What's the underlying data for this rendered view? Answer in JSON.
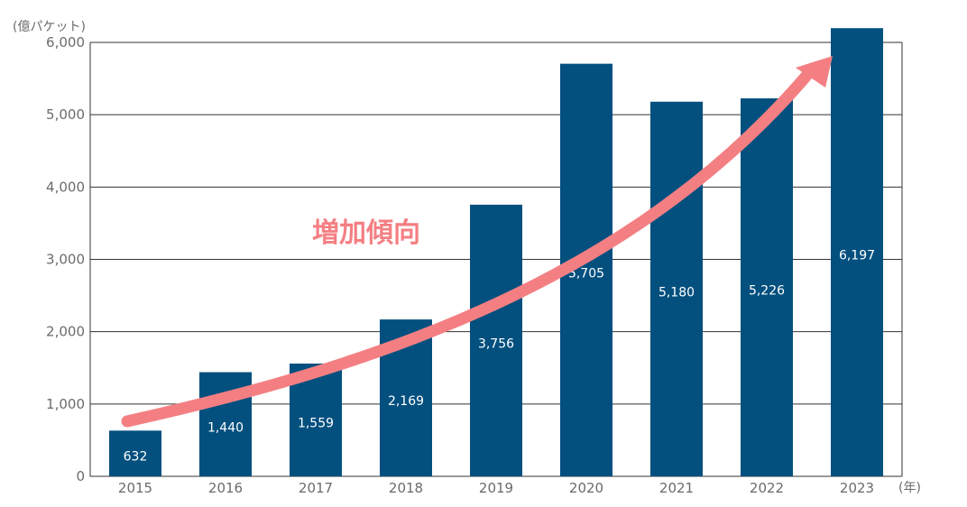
{
  "chart_data": {
    "type": "bar",
    "y_unit_label": "(億パケット)",
    "x_unit_label": "(年)",
    "categories": [
      "2015",
      "2016",
      "2017",
      "2018",
      "2019",
      "2020",
      "2021",
      "2022",
      "2023"
    ],
    "values": [
      632,
      1440,
      1559,
      2169,
      3756,
      5705,
      5180,
      5226,
      6197
    ],
    "value_labels": [
      "632",
      "1,440",
      "1,559",
      "2,169",
      "3,756",
      "5,705",
      "5,180",
      "5,226",
      "6,197"
    ],
    "y_ticks": [
      0,
      1000,
      2000,
      3000,
      4000,
      5000,
      6000
    ],
    "y_tick_labels": [
      "0",
      "1,000",
      "2,000",
      "3,000",
      "4,000",
      "5,000",
      "6,000"
    ],
    "ylim": [
      0,
      6000
    ],
    "grid": true,
    "legend": "none",
    "annotation": "増加傾向",
    "colors": {
      "bar": "#03507f",
      "arrow": "#f47f83",
      "annotation": "#f47f83",
      "grid": "#333333",
      "tick_text": "#6b6b6b",
      "data_label": "#ffffff"
    }
  }
}
